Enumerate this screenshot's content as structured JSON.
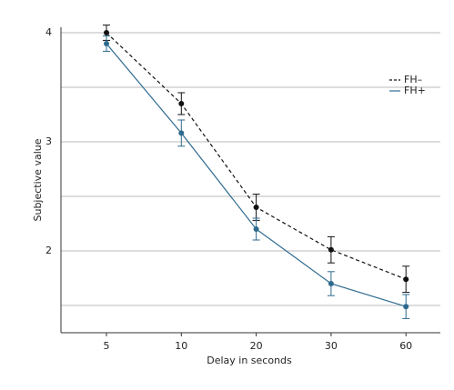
{
  "chart_data": {
    "type": "line",
    "x_label": "Delay in seconds",
    "y_label": "Subjective value",
    "categories": [
      "5",
      "10",
      "20",
      "30",
      "60"
    ],
    "series": [
      {
        "name": "FH–",
        "color": "#111111",
        "dashed": true,
        "values": [
          4.0,
          3.35,
          2.4,
          2.01,
          1.74
        ],
        "errors": [
          0.07,
          0.1,
          0.12,
          0.12,
          0.12
        ]
      },
      {
        "name": "FH+",
        "color": "#2e6a8e",
        "dashed": false,
        "values": [
          3.9,
          3.08,
          2.2,
          1.7,
          1.49
        ],
        "errors": [
          0.07,
          0.12,
          0.1,
          0.11,
          0.11
        ]
      }
    ],
    "ylim": [
      1.25,
      4.05
    ],
    "yticks": [
      2,
      3,
      4
    ],
    "minor_yticks": [
      1.5,
      2.5,
      3.5
    ],
    "grid": true,
    "legend": "right"
  }
}
